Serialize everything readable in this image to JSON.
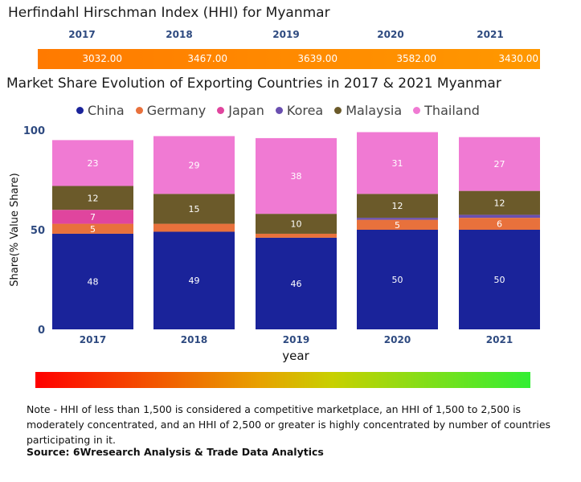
{
  "hhi": {
    "title": "Herfindahl Hirschman Index (HHI) for Myanmar",
    "years": [
      "2017",
      "2018",
      "2019",
      "2020",
      "2021"
    ],
    "values": [
      "3032.00",
      "3467.00",
      "3639.00",
      "3582.00",
      "3430.00"
    ]
  },
  "legend": {
    "items": [
      {
        "label": "China",
        "color": "#1a239a"
      },
      {
        "label": "Germany",
        "color": "#e8713c"
      },
      {
        "label": "Japan",
        "color": "#e0459e"
      },
      {
        "label": "Korea",
        "color": "#6a4fb0"
      },
      {
        "label": "Malaysia",
        "color": "#6b5a2a"
      },
      {
        "label": "Thailand",
        "color": "#f07ad3"
      }
    ]
  },
  "chart_data": {
    "type": "bar",
    "stacked": true,
    "title": "Market Share Evolution of Exporting Countries in 2017 & 2021 Myanmar",
    "xlabel": "year",
    "ylabel": "Share(% Value Share)",
    "ylim": [
      0,
      100
    ],
    "yticks": [
      "0",
      "50",
      "100"
    ],
    "categories": [
      "2017",
      "2018",
      "2019",
      "2020",
      "2021"
    ],
    "series": [
      {
        "name": "China",
        "color": "#1a239a",
        "values": [
          48,
          49,
          46,
          50,
          50
        ],
        "labels": [
          "48",
          "49",
          "46",
          "50",
          "50"
        ]
      },
      {
        "name": "Germany",
        "color": "#e8713c",
        "values": [
          5,
          4,
          2,
          5,
          6
        ],
        "labels": [
          "5",
          "",
          "",
          "5",
          "6"
        ]
      },
      {
        "name": "Japan",
        "color": "#e0459e",
        "values": [
          7,
          0,
          0,
          0,
          0
        ],
        "labels": [
          "7",
          "",
          "",
          "",
          ""
        ]
      },
      {
        "name": "Korea",
        "color": "#6a4fb0",
        "values": [
          0,
          0,
          0,
          1,
          1.5
        ],
        "labels": [
          "",
          "",
          "",
          "",
          ""
        ]
      },
      {
        "name": "Malaysia",
        "color": "#6b5a2a",
        "values": [
          12,
          15,
          10,
          12,
          12
        ],
        "labels": [
          "12",
          "15",
          "10",
          "12",
          "12"
        ]
      },
      {
        "name": "Thailand",
        "color": "#f07ad3",
        "values": [
          23,
          29,
          38,
          31,
          27
        ],
        "labels": [
          "23",
          "29",
          "38",
          "31",
          "27"
        ]
      }
    ]
  },
  "note": "Note - HHI of less than 1,500 is considered a competitive marketplace, an HHI of 1,500 to 2,500 is moderately concentrated, and an HHI of 2,500 or greater is highly concentrated by number of countries participating in it.",
  "source": "Source: 6Wresearch Analysis & Trade Data Analytics"
}
